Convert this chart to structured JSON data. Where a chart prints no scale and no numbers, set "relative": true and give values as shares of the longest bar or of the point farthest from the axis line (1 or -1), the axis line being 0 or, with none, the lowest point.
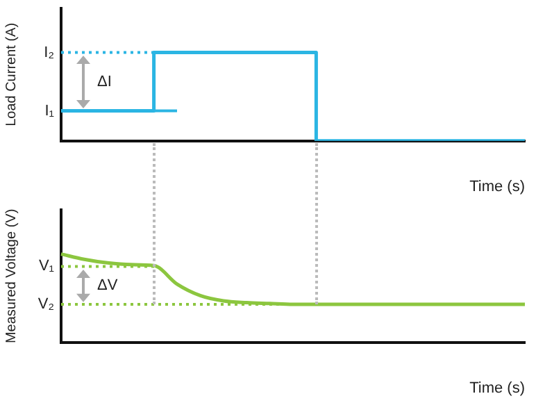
{
  "chart_data": [
    {
      "type": "step",
      "ylabel": "Load Current (A)",
      "xlabel": "Time (s)",
      "relative": true,
      "legend": false,
      "grid": false,
      "marker": "none",
      "categories": [
        null,
        null,
        null,
        null,
        null,
        null,
        null,
        null,
        null,
        null,
        null,
        null,
        null,
        null,
        null,
        null,
        null,
        null,
        null,
        null,
        null
      ],
      "series": [
        {
          "color": "#2bb5e3",
          "values": [
            0.34,
            0.34,
            0.34,
            0.34,
            1,
            1,
            1,
            1,
            1,
            1,
            1,
            0,
            0,
            0,
            0,
            0,
            0,
            0,
            0,
            0,
            0
          ]
        }
      ],
      "ref_lines": [
        {
          "axis": "y",
          "value": 0.34,
          "label": "I₁",
          "color": "#2bb5e3",
          "line_style": "solid"
        },
        {
          "axis": "y",
          "value": 1,
          "label": "I₂",
          "color": "#2bb5e3",
          "line_style": "dotted"
        }
      ],
      "annotations": [
        "ΔI"
      ]
    },
    {
      "type": "line",
      "ylabel": "Measured Voltage (V)",
      "xlabel": "Time (s)",
      "relative": true,
      "legend": false,
      "grid": false,
      "marker": "none",
      "categories": [
        null,
        null,
        null,
        null,
        null,
        null,
        null,
        null,
        null,
        null,
        null,
        null,
        null,
        null,
        null,
        null,
        null,
        null,
        null,
        null,
        null
      ],
      "series": [
        {
          "color": "#8cc63f",
          "values": [
            1,
            0.94,
            0.9,
            0.88,
            0.87,
            0.66,
            0.53,
            0.47,
            0.45,
            0.44,
            0.43,
            0.43,
            0.43,
            0.43,
            0.43,
            0.43,
            0.43,
            0.43,
            0.43,
            0.43,
            0.43
          ]
        }
      ],
      "ref_lines": [
        {
          "axis": "y",
          "value": 0.86,
          "label": "V₁",
          "color": "#8cc63f",
          "line_style": "dotted"
        },
        {
          "axis": "y",
          "value": 0.43,
          "label": "V₂",
          "color": "#8cc63f",
          "line_style": "dotted"
        }
      ],
      "annotations": [
        "ΔV"
      ]
    }
  ]
}
